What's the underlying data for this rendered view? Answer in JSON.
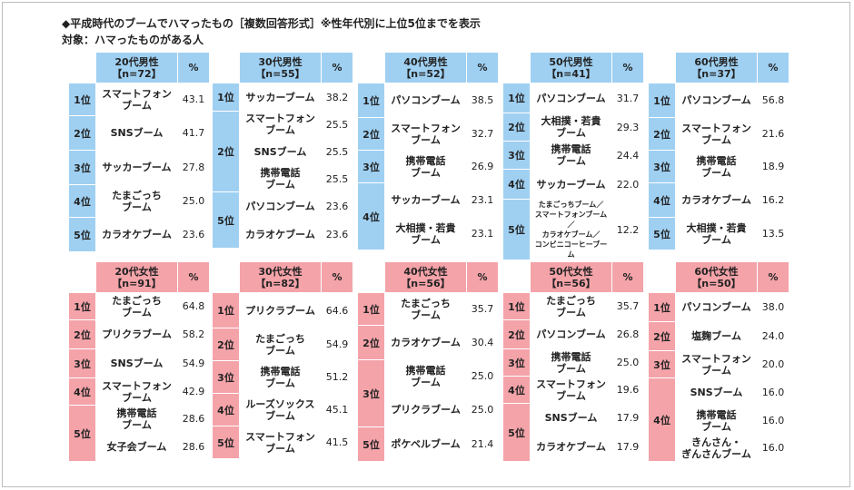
{
  "title": "◆平成時代のブームでハマったもの［複数回答形式］※性年代別に上位5位までを表示",
  "subtitle": "対象：ハマったものがある人",
  "pct_label": "%",
  "chart_data": [
    {
      "type": "table",
      "group": "male",
      "header": [
        "20代男性",
        "【n=72】"
      ],
      "rows": [
        {
          "rank": "1位",
          "item": "スマートフォン\nブーム",
          "value": "43.1"
        },
        {
          "rank": "2位",
          "item": "SNSブーム",
          "value": "41.7"
        },
        {
          "rank": "3位",
          "item": "サッカーブーム",
          "value": "27.8"
        },
        {
          "rank": "4位",
          "item": "たまごっち\nブーム",
          "value": "25.0"
        },
        {
          "rank": "5位",
          "item": "カラオケブーム",
          "value": "23.6"
        }
      ]
    },
    {
      "type": "table",
      "group": "male",
      "header": [
        "30代男性",
        "【n=55】"
      ],
      "rows": [
        {
          "rank": "1位",
          "item": "サッカーブーム",
          "value": "38.2"
        },
        {
          "rank": "2位",
          "item": "スマートフォン\nブーム",
          "value": "25.5"
        },
        {
          "rank": "",
          "item": "SNSブーム",
          "value": "25.5"
        },
        {
          "rank": "",
          "item": "携帯電話\nブーム",
          "value": "25.5"
        },
        {
          "rank": "5位",
          "item": "パソコンブーム",
          "value": "23.6"
        },
        {
          "rank": "",
          "item": "カラオケブーム",
          "value": "23.6"
        }
      ]
    },
    {
      "type": "table",
      "group": "male",
      "header": [
        "40代男性",
        "【n=52】"
      ],
      "rows": [
        {
          "rank": "1位",
          "item": "パソコンブーム",
          "value": "38.5"
        },
        {
          "rank": "2位",
          "item": "スマートフォン\nブーム",
          "value": "32.7"
        },
        {
          "rank": "3位",
          "item": "携帯電話\nブーム",
          "value": "26.9"
        },
        {
          "rank": "4位",
          "item": "サッカーブーム",
          "value": "23.1"
        },
        {
          "rank": "",
          "item": "大相撲・若貴\nブーム",
          "value": "23.1"
        }
      ]
    },
    {
      "type": "table",
      "group": "male",
      "header": [
        "50代男性",
        "【n=41】"
      ],
      "rows": [
        {
          "rank": "1位",
          "item": "パソコンブーム",
          "value": "31.7"
        },
        {
          "rank": "2位",
          "item": "大相撲・若貴\nブーム",
          "value": "29.3"
        },
        {
          "rank": "3位",
          "item": "携帯電話\nブーム",
          "value": "24.4"
        },
        {
          "rank": "4位",
          "item": "サッカーブーム",
          "value": "22.0"
        },
        {
          "rank": "5位",
          "item": "たまごっちブーム／\nスマートフォンブーム／\nカラオケブーム／\nコンビニコーヒーブーム",
          "value": "12.2"
        }
      ]
    },
    {
      "type": "table",
      "group": "male",
      "header": [
        "60代男性",
        "【n=37】"
      ],
      "rows": [
        {
          "rank": "1位",
          "item": "パソコンブーム",
          "value": "56.8"
        },
        {
          "rank": "2位",
          "item": "スマートフォン\nブーム",
          "value": "21.6"
        },
        {
          "rank": "3位",
          "item": "携帯電話\nブーム",
          "value": "18.9"
        },
        {
          "rank": "4位",
          "item": "カラオケブーム",
          "value": "16.2"
        },
        {
          "rank": "5位",
          "item": "大相撲・若貴\nブーム",
          "value": "13.5"
        }
      ]
    },
    {
      "type": "table",
      "group": "female",
      "header": [
        "20代女性",
        "【n=91】"
      ],
      "rows": [
        {
          "rank": "1位",
          "item": "たまごっち\nブーム",
          "value": "64.8"
        },
        {
          "rank": "2位",
          "item": "プリクラブーム",
          "value": "58.2"
        },
        {
          "rank": "3位",
          "item": "SNSブーム",
          "value": "54.9"
        },
        {
          "rank": "4位",
          "item": "スマートフォン\nブーム",
          "value": "42.9"
        },
        {
          "rank": "5位",
          "item": "携帯電話\nブーム",
          "value": "28.6"
        },
        {
          "rank": "",
          "item": "女子会ブーム",
          "value": "28.6"
        }
      ]
    },
    {
      "type": "table",
      "group": "female",
      "header": [
        "30代女性",
        "【n=82】"
      ],
      "rows": [
        {
          "rank": "1位",
          "item": "プリクラブーム",
          "value": "64.6"
        },
        {
          "rank": "2位",
          "item": "たまごっち\nブーム",
          "value": "54.9"
        },
        {
          "rank": "3位",
          "item": "携帯電話\nブーム",
          "value": "51.2"
        },
        {
          "rank": "4位",
          "item": "ルーズソックス\nブーム",
          "value": "45.1"
        },
        {
          "rank": "5位",
          "item": "スマートフォン\nブーム",
          "value": "41.5"
        }
      ]
    },
    {
      "type": "table",
      "group": "female",
      "header": [
        "40代女性",
        "【n=56】"
      ],
      "rows": [
        {
          "rank": "1位",
          "item": "たまごっち\nブーム",
          "value": "35.7"
        },
        {
          "rank": "2位",
          "item": "カラオケブーム",
          "value": "30.4"
        },
        {
          "rank": "3位",
          "item": "携帯電話\nブーム",
          "value": "25.0"
        },
        {
          "rank": "",
          "item": "プリクラブーム",
          "value": "25.0"
        },
        {
          "rank": "5位",
          "item": "ポケベルブーム",
          "value": "21.4"
        }
      ]
    },
    {
      "type": "table",
      "group": "female",
      "header": [
        "50代女性",
        "【n=56】"
      ],
      "rows": [
        {
          "rank": "1位",
          "item": "たまごっち\nブーム",
          "value": "35.7"
        },
        {
          "rank": "2位",
          "item": "パソコンブーム",
          "value": "26.8"
        },
        {
          "rank": "3位",
          "item": "携帯電話\nブーム",
          "value": "25.0"
        },
        {
          "rank": "4位",
          "item": "スマートフォン\nブーム",
          "value": "19.6"
        },
        {
          "rank": "5位",
          "item": "SNSブーム",
          "value": "17.9"
        },
        {
          "rank": "",
          "item": "カラオケブーム",
          "value": "17.9"
        }
      ]
    },
    {
      "type": "table",
      "group": "female",
      "header": [
        "60代女性",
        "【n=50】"
      ],
      "rows": [
        {
          "rank": "1位",
          "item": "パソコンブーム",
          "value": "38.0"
        },
        {
          "rank": "2位",
          "item": "塩麹ブーム",
          "value": "24.0"
        },
        {
          "rank": "3位",
          "item": "スマートフォン\nブーム",
          "value": "20.0"
        },
        {
          "rank": "4位",
          "item": "SNSブーム",
          "value": "16.0"
        },
        {
          "rank": "",
          "item": "携帯電話\nブーム",
          "value": "16.0"
        },
        {
          "rank": "",
          "item": "きんさん・\nぎんさんブーム",
          "value": "16.0"
        }
      ]
    }
  ]
}
